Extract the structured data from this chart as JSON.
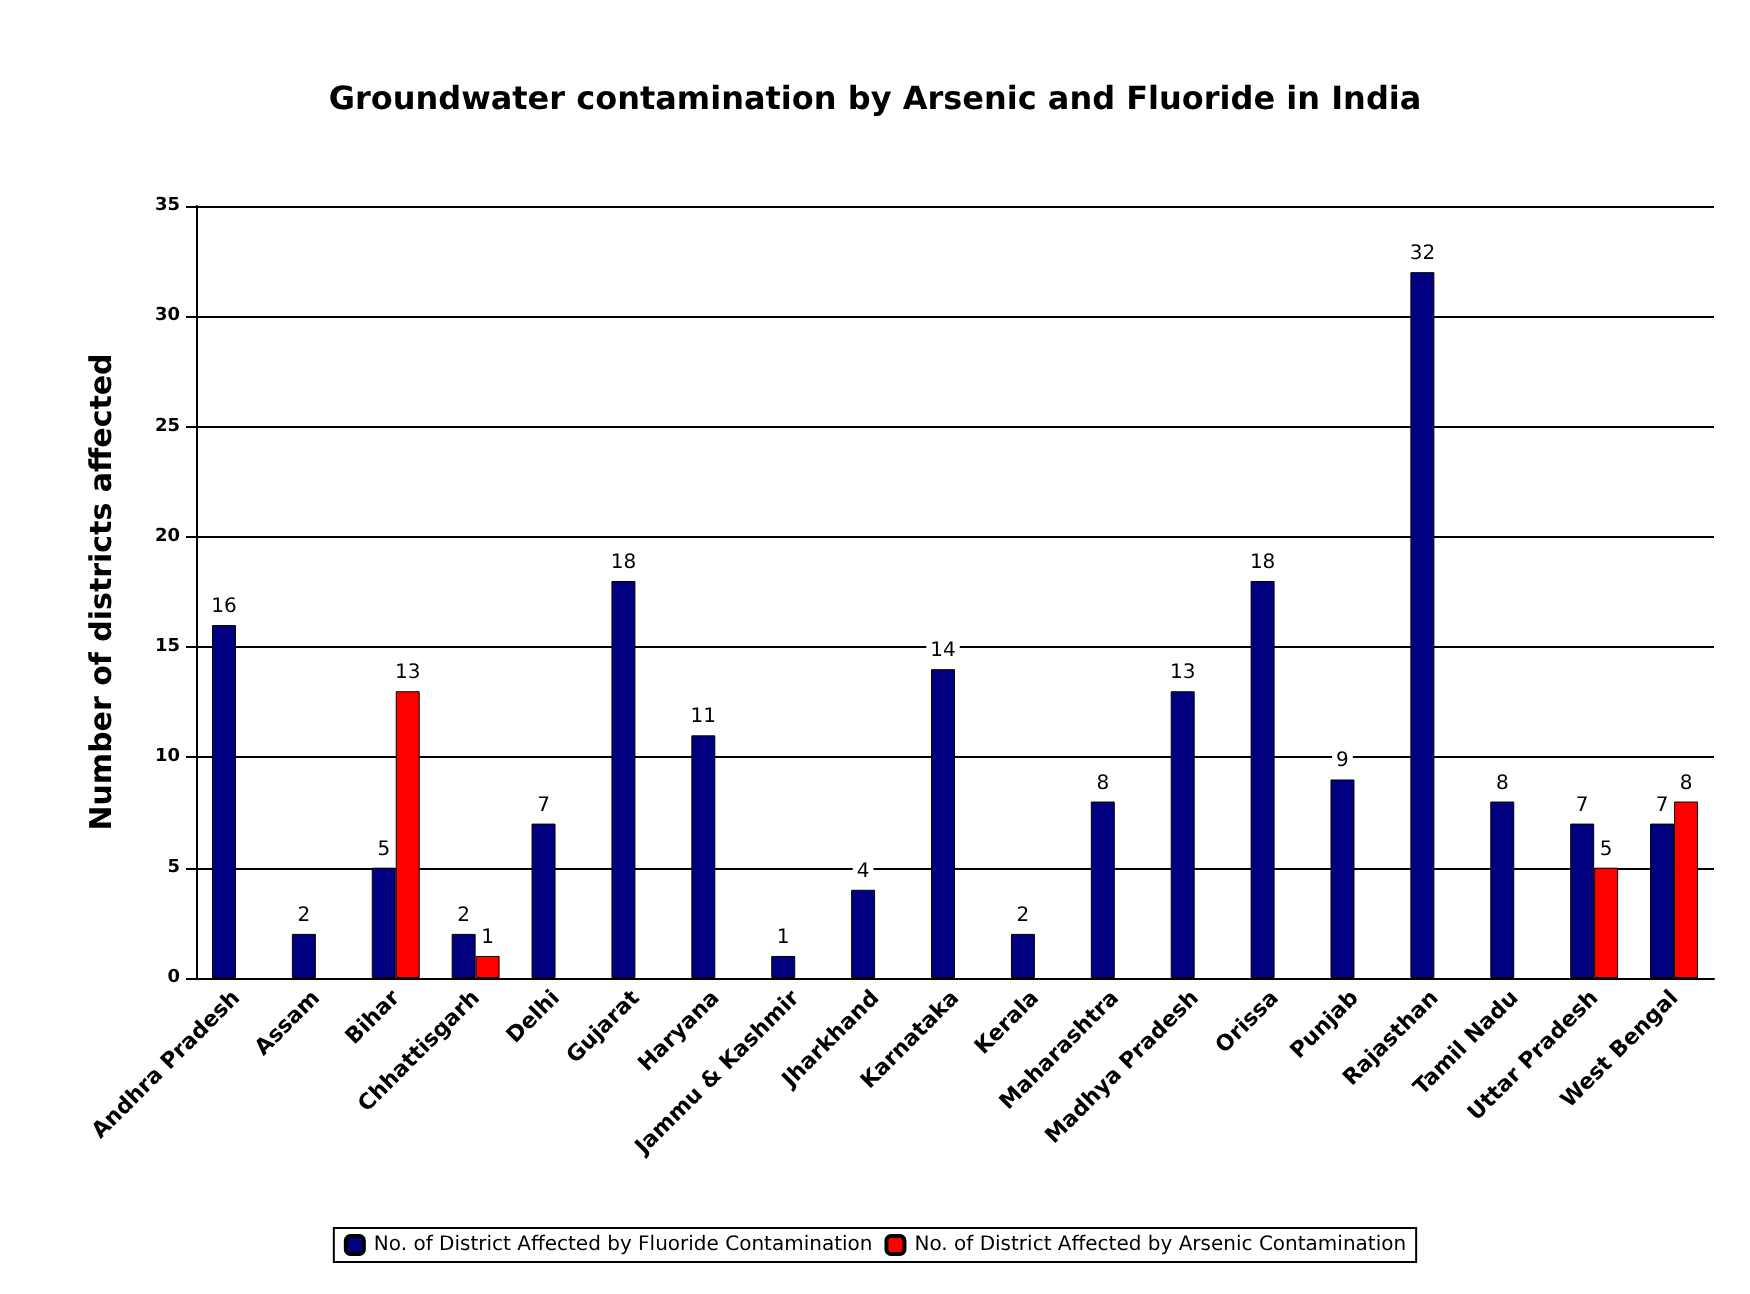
{
  "chart_data": {
    "type": "bar",
    "title": "Groundwater contamination by Arsenic and Fluoride in India",
    "ylabel": "Number of districts affected",
    "categories": [
      "Andhra Pradesh",
      "Assam",
      "Bihar",
      "Chhattisgarh",
      "Delhi",
      "Gujarat",
      "Haryana",
      "Jammu & Kashmir",
      "Jharkhand",
      "Karnataka",
      "Kerala",
      "Maharashtra",
      "Madhya Pradesh",
      "Orissa",
      "Punjab",
      "Rajasthan",
      "Tamil Nadu",
      "Uttar Pradesh",
      "West Bengal"
    ],
    "series": [
      {
        "name": "No. of District Affected by Fluoride Contamination",
        "color": "#000080",
        "values": [
          16,
          2,
          5,
          2,
          7,
          18,
          11,
          1,
          4,
          14,
          2,
          8,
          13,
          18,
          9,
          32,
          8,
          7,
          7
        ]
      },
      {
        "name": "No. of District Affected by Arsenic Contamination",
        "color": "#ff0000",
        "values": [
          null,
          null,
          13,
          1,
          null,
          null,
          null,
          null,
          null,
          null,
          null,
          null,
          null,
          null,
          null,
          null,
          null,
          5,
          8
        ]
      }
    ],
    "ylim": [
      0,
      35
    ],
    "yticks": [
      0,
      5,
      10,
      15,
      20,
      25,
      30,
      35
    ],
    "grid": "y",
    "legend": "bottom",
    "data_labels": true
  }
}
